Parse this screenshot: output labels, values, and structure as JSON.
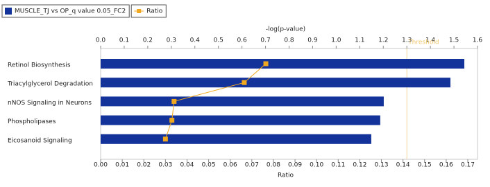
{
  "chart_data": {
    "type": "bar",
    "orientation": "horizontal",
    "categories": [
      "Retinol Biosynthesis",
      "Triacylglycerol Degradation",
      "nNOS Signaling in Neurons",
      "Phospholipases",
      "Eicosanoid Signaling"
    ],
    "series": [
      {
        "name": "MUSCLE_TJ vs OP_q value 0.05_FC2",
        "type": "bar",
        "color": "#14339a",
        "axis": "x",
        "values": [
          1.544,
          1.485,
          1.202,
          1.187,
          1.149
        ]
      },
      {
        "name": "Ratio",
        "type": "line",
        "color": "#f0a81e",
        "axis": "x2",
        "values": [
          0.0765,
          0.0665,
          0.034,
          0.033,
          0.03
        ]
      }
    ],
    "x_label": "-log(p-value)",
    "xlim": [
      0,
      1.6
    ],
    "xticks": [
      {
        "value": 0,
        "label": "0.0"
      },
      0.1,
      0.2,
      0.3,
      0.4,
      0.5,
      0.6,
      0.7,
      0.8,
      0.9,
      {
        "value": 1,
        "label": "1.0"
      },
      1.1,
      1.2,
      1.3,
      1.4,
      1.5,
      1.6
    ],
    "x2_label": "Ratio",
    "x2lim": [
      0,
      0.1745
    ],
    "x2ticks": [
      {
        "value": 0,
        "label": "0.00"
      },
      0.01,
      0.02,
      0.03,
      0.04,
      0.05,
      0.06,
      0.07,
      0.08,
      0.09,
      {
        "value": 0.1,
        "label": "0.10"
      },
      0.11,
      0.12,
      0.13,
      0.14,
      0.15,
      0.16,
      0.17
    ],
    "threshold": {
      "value": 1.3,
      "label": "Threshold"
    }
  }
}
